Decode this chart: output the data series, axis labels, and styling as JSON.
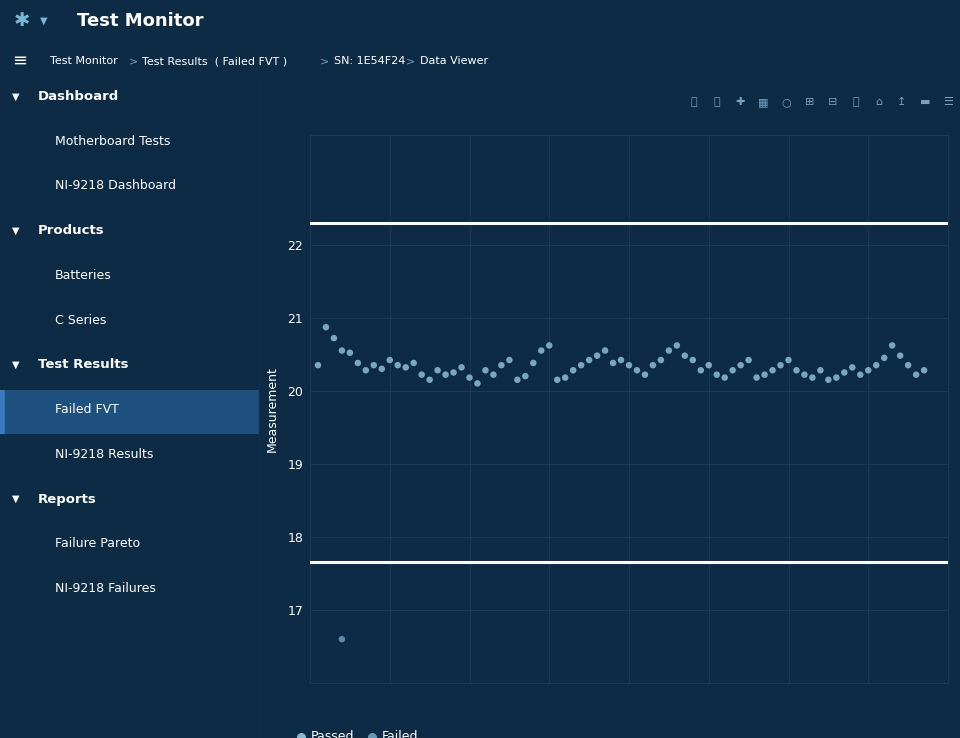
{
  "bg_dark": "#0d2b45",
  "bg_sidebar": "#0d2b45",
  "bg_topbar": "#0e3154",
  "bg_chart": "#0d2b45",
  "bg_selected": "#1e5080",
  "text_color": "#ffffff",
  "text_muted": "#7aa0be",
  "grid_color": "#1a3a58",
  "line_color": "#ffffff",
  "passed_color": "#8ab8d0",
  "failed_color": "#6898b8",
  "upper_limit": 22.3,
  "lower_limit": 17.65,
  "ylabel": "Measurement",
  "ylim_low": 16.0,
  "ylim_high": 23.5,
  "yticks": [
    17,
    18,
    19,
    20,
    21,
    22
  ],
  "passed_x": [
    1,
    2,
    3,
    4,
    5,
    6,
    7,
    8,
    9,
    10,
    11,
    12,
    13,
    14,
    15,
    16,
    17,
    18,
    19,
    20,
    21,
    22,
    23,
    24,
    25,
    26,
    27,
    28,
    29,
    30,
    31,
    32,
    33,
    34,
    35,
    36,
    37,
    38,
    39,
    40,
    41,
    42,
    43,
    44,
    45,
    46,
    47,
    48,
    49,
    50,
    51,
    52,
    53,
    54,
    55,
    56,
    57,
    58,
    59,
    60,
    61,
    62,
    63,
    64,
    65,
    66,
    67,
    68,
    69,
    70,
    71,
    72,
    73,
    74,
    75,
    76,
    77
  ],
  "passed_y": [
    20.35,
    20.87,
    20.72,
    20.55,
    20.52,
    20.38,
    20.28,
    20.35,
    20.3,
    20.42,
    20.35,
    20.32,
    20.38,
    20.22,
    20.15,
    20.28,
    20.22,
    20.25,
    20.32,
    20.18,
    20.1,
    20.28,
    20.22,
    20.35,
    20.42,
    20.15,
    20.2,
    20.38,
    20.55,
    20.62,
    20.15,
    20.18,
    20.28,
    20.35,
    20.42,
    20.48,
    20.55,
    20.38,
    20.42,
    20.35,
    20.28,
    20.22,
    20.35,
    20.42,
    20.55,
    20.62,
    20.48,
    20.42,
    20.28,
    20.35,
    20.22,
    20.18,
    20.28,
    20.35,
    20.42,
    20.18,
    20.22,
    20.28,
    20.35,
    20.42,
    20.28,
    20.22,
    20.18,
    20.28,
    20.15,
    20.18,
    20.25,
    20.32,
    20.22,
    20.28,
    20.35,
    20.45,
    20.62,
    20.48,
    20.35,
    20.22,
    20.28
  ],
  "failed_x": [
    4
  ],
  "failed_y": [
    16.6
  ],
  "nav_title": "Test Monitor",
  "breadcrumbs": [
    "Test Monitor",
    "Test Results  ( Failed FVT )",
    "SN: 1E54F24",
    "Data Viewer"
  ],
  "menu_items": [
    {
      "label": "Dashboard",
      "level": 0,
      "arrow": true,
      "selected": false
    },
    {
      "label": "Motherboard Tests",
      "level": 1,
      "arrow": false,
      "selected": false
    },
    {
      "label": "NI-9218 Dashboard",
      "level": 1,
      "arrow": false,
      "selected": false
    },
    {
      "label": "Products",
      "level": 0,
      "arrow": true,
      "selected": false
    },
    {
      "label": "Batteries",
      "level": 1,
      "arrow": false,
      "selected": false
    },
    {
      "label": "C Series",
      "level": 1,
      "arrow": false,
      "selected": false
    },
    {
      "label": "Test Results",
      "level": 0,
      "arrow": true,
      "selected": false
    },
    {
      "label": "Failed FVT",
      "level": 1,
      "arrow": false,
      "selected": true
    },
    {
      "label": "NI-9218 Results",
      "level": 1,
      "arrow": false,
      "selected": false
    },
    {
      "label": "Reports",
      "level": 0,
      "arrow": true,
      "selected": false
    },
    {
      "label": "Failure Pareto",
      "level": 1,
      "arrow": false,
      "selected": false
    },
    {
      "label": "NI-9218 Failures",
      "level": 1,
      "arrow": false,
      "selected": false
    }
  ],
  "fig_width": 9.6,
  "fig_height": 7.38,
  "dpi": 100
}
